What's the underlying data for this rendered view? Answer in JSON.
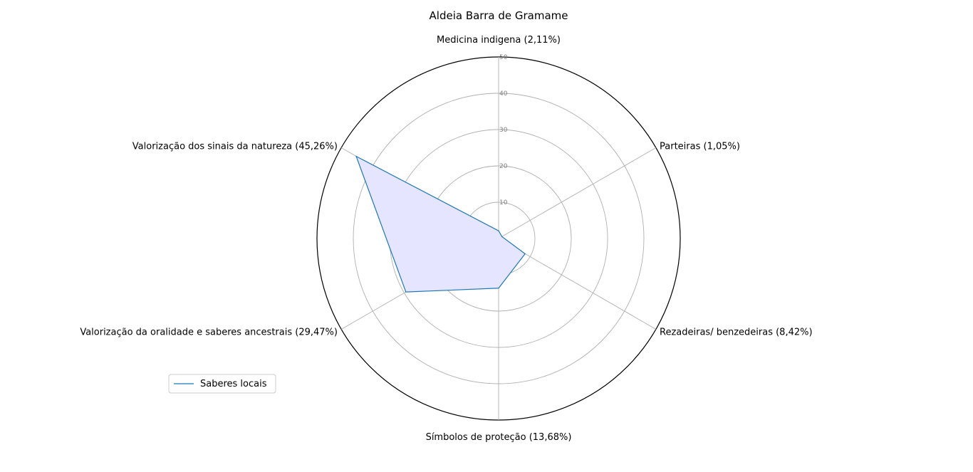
{
  "chart_data": {
    "type": "radar",
    "title": "Aldeia Barra de Gramame",
    "categories": [
      "Medicina indigena (2,11%)",
      "Parteiras (1,05%)",
      "Rezadeiras/ benzedeiras (8,42%)",
      "Símbolos de proteção (13,68%)",
      "Valorização da oralidade e saberes ancestrais  (29,47%)",
      "Valorização dos sinais da natureza   (45,26%)"
    ],
    "series": [
      {
        "name": "Saberes locais",
        "values": [
          2.11,
          1.05,
          8.42,
          13.68,
          29.47,
          45.26
        ]
      }
    ],
    "rlim": [
      0,
      50
    ],
    "rticks": [
      10,
      20,
      30,
      40,
      50
    ],
    "rtick_labels": [
      "10",
      "20",
      "30",
      "40",
      "50"
    ],
    "grid": true,
    "legend_position": "lower-left",
    "colors": {
      "line": "#1f77b4",
      "fill": "#e5e5ff",
      "grid": "#b0b0b0",
      "outer_ring": "#000000",
      "tick_label": "#808080"
    }
  }
}
